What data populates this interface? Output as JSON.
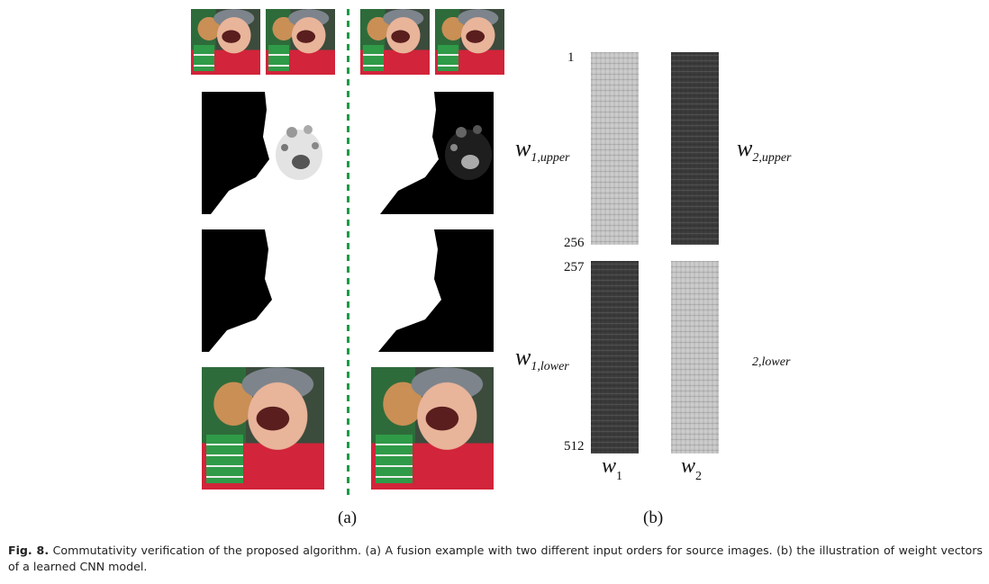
{
  "panel_a": {
    "label": "(a)",
    "left_column": [
      "source-image-1",
      "source-image-2",
      "decision-map",
      "refined-map",
      "fused-image"
    ],
    "right_column": [
      "source-image-1",
      "source-image-2",
      "decision-map",
      "refined-map",
      "fused-image"
    ]
  },
  "panel_b": {
    "label": "(b)",
    "row_ticks": {
      "t1": "1",
      "t256": "256",
      "t257": "257",
      "t512": "512"
    },
    "w1_upper": {
      "base": "w",
      "sub": "1,upper"
    },
    "w2_upper": {
      "base": "w",
      "sub": "2,upper"
    },
    "w1_lower": {
      "base": "w",
      "sub": "1,lower"
    },
    "w2_lower": {
      "text": "2,lower"
    },
    "col_w1": {
      "base": "w",
      "sub": "1"
    },
    "col_w2": {
      "base": "w",
      "sub": "2"
    }
  },
  "caption": {
    "label": "Fig. 8.",
    "text": "Commutativity verification of the proposed algorithm. (a) A fusion example with two different input orders for source images. (b) the illustration of weight vectors of a learned CNN model."
  },
  "colors": {
    "divider": "#1c9a45",
    "light_bar": "#c9c9c9",
    "dark_bar": "#3d3d3d"
  }
}
